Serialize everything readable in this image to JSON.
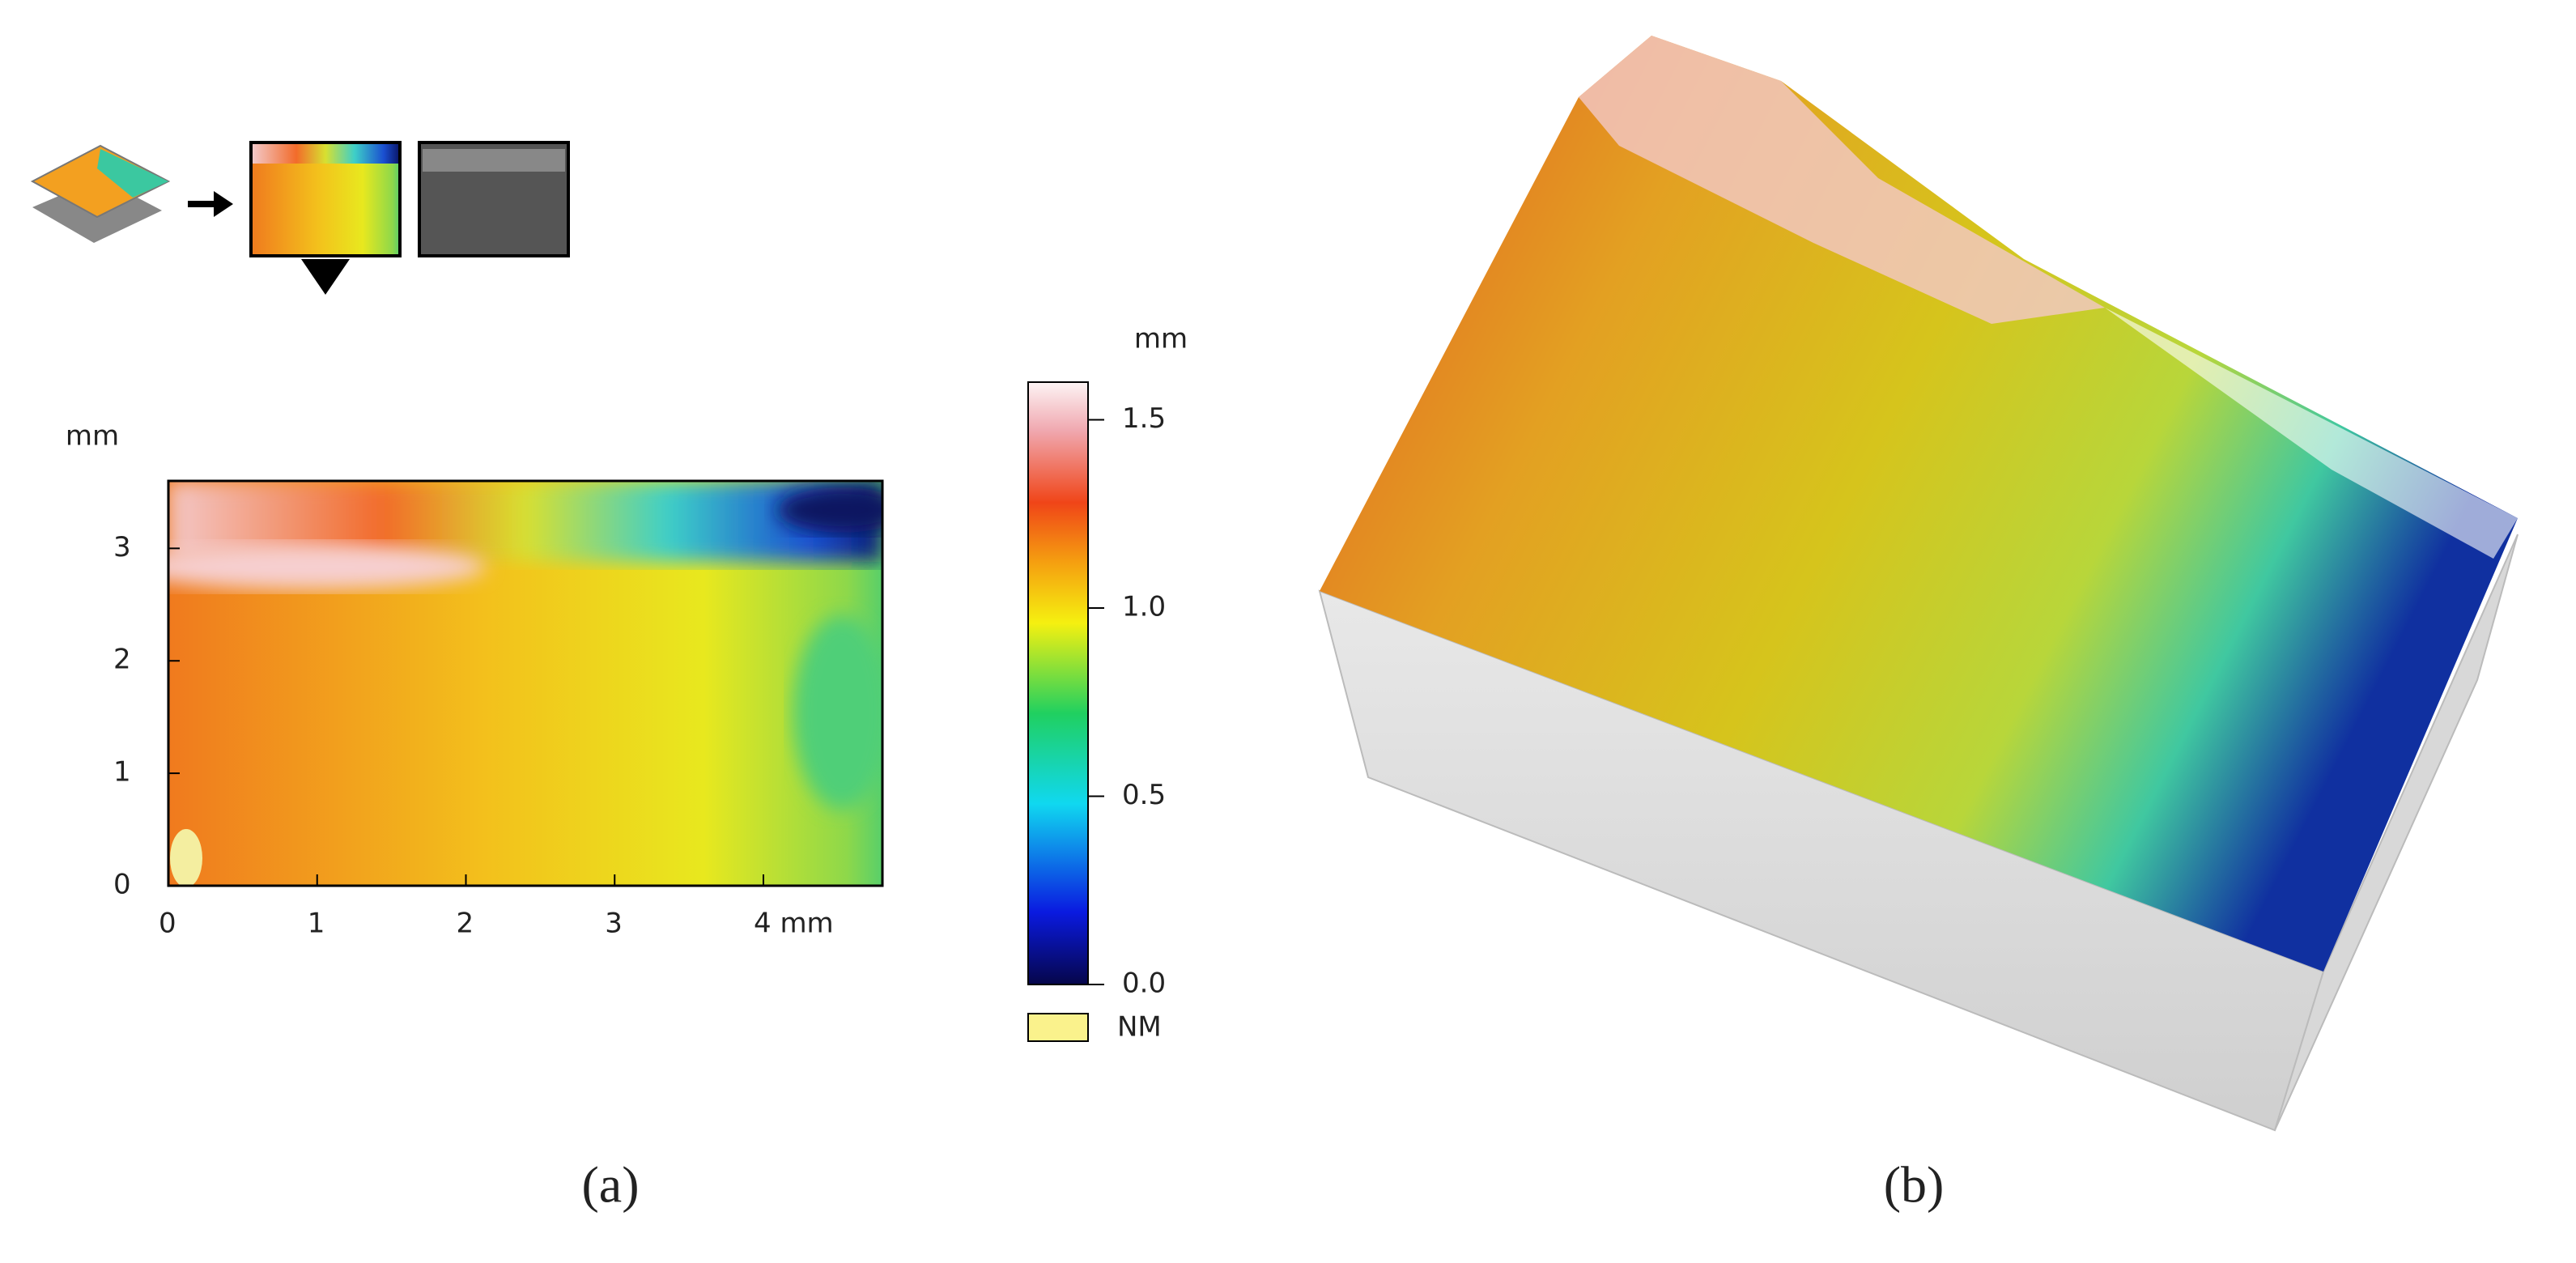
{
  "panel_a": {
    "x_axis": {
      "lim": [
        0,
        4.8
      ],
      "ticks": [
        0,
        1,
        2,
        3,
        {
          "value": 4,
          "label": "4 mm"
        }
      ]
    },
    "y_axis": {
      "label": "mm",
      "lim": [
        0,
        3.6
      ],
      "ticks": [
        0,
        1,
        2,
        3
      ]
    },
    "colorbar": {
      "label": "mm",
      "lim": [
        0,
        1.6
      ],
      "ticks": [
        {
          "value": 1.5,
          "label": "1.5"
        },
        {
          "value": 1,
          "label": "1.0"
        },
        {
          "value": 0.5,
          "label": "0.5"
        },
        {
          "value": 0,
          "label": "0.0"
        }
      ],
      "nm_label": "NM"
    },
    "caption": "(a)"
  },
  "panel_b": {
    "caption": "(b)"
  }
}
